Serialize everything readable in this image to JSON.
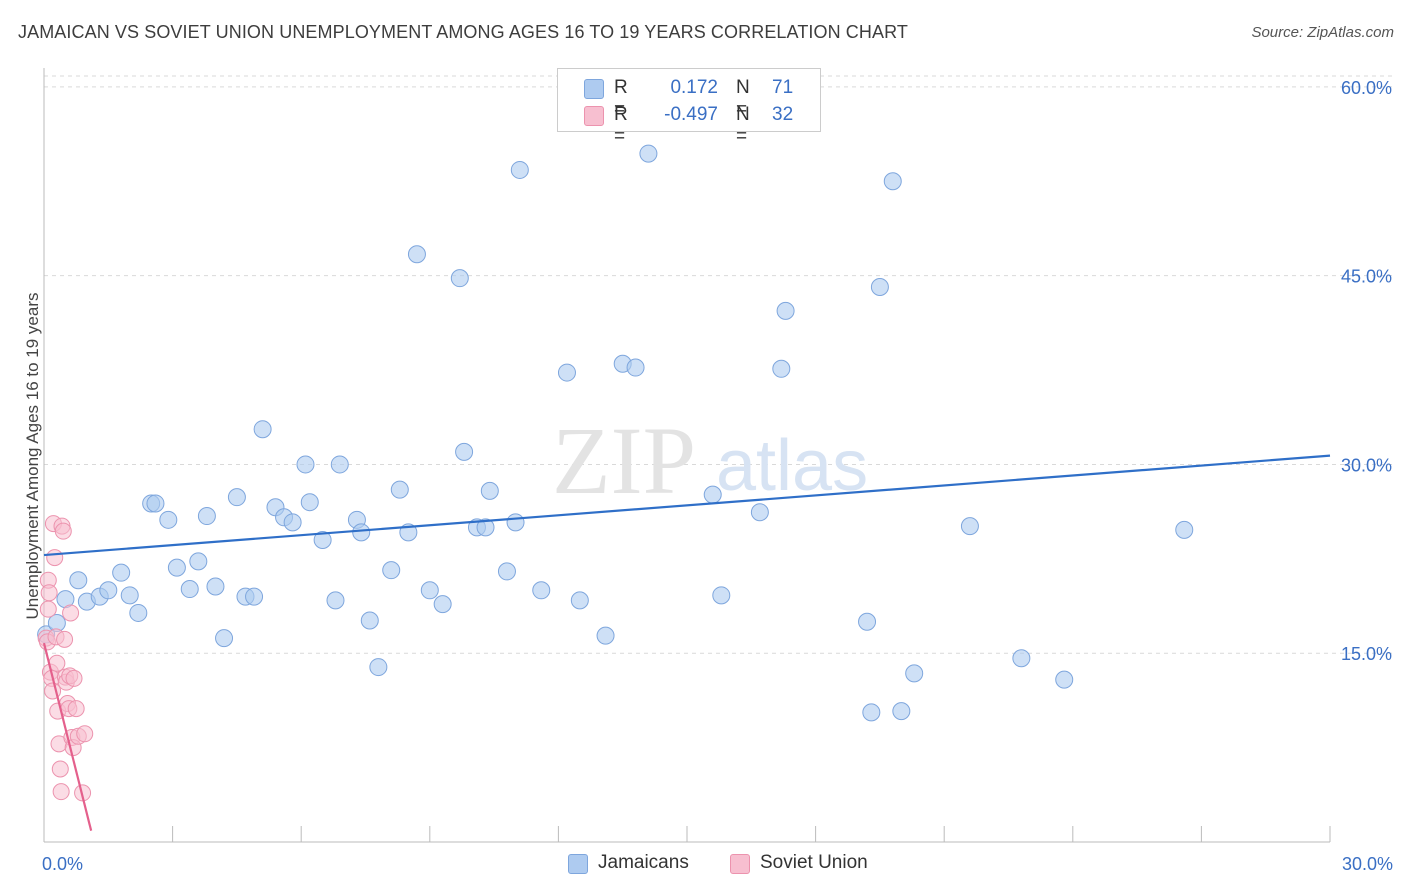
{
  "title": "JAMAICAN VS SOVIET UNION UNEMPLOYMENT AMONG AGES 16 TO 19 YEARS CORRELATION CHART",
  "source": "Source: ZipAtlas.com",
  "watermark": {
    "zip": "ZIP",
    "atlas": "atlas"
  },
  "legend": {
    "jamaicans": {
      "r_label": "R =",
      "r_value": "0.172",
      "n_label": "N =",
      "n_value": "71"
    },
    "soviet": {
      "r_label": "R =",
      "r_value": "-0.497",
      "n_label": "N =",
      "n_value": "32"
    }
  },
  "colors": {
    "jamaicans_fill": "#aecbf0",
    "jamaicans_stroke": "#7ea6dd",
    "jamaicans_line": "#2f6fc8",
    "soviet_fill": "#f7bfd0",
    "soviet_stroke": "#ec93ae",
    "soviet_line": "#e4608c",
    "tick_label": "#3a6fc4",
    "grid": "#d9d9d9"
  },
  "chart_data": {
    "type": "scatter",
    "title": "JAMAICAN VS SOVIET UNION UNEMPLOYMENT AMONG AGES 16 TO 19 YEARS CORRELATION CHART",
    "xlabel": "",
    "ylabel": "Unemployment Among Ages 16 to 19 years",
    "xlim": [
      0,
      30
    ],
    "ylim": [
      0,
      61.5
    ],
    "x_tick_labels": [
      "0.0%",
      "30.0%"
    ],
    "x_tick_values": [
      0,
      30
    ],
    "y_tick_labels": [
      "15.0%",
      "30.0%",
      "45.0%",
      "60.0%"
    ],
    "y_tick_values": [
      15,
      30,
      45,
      60
    ],
    "grid": true,
    "legend_position": "top-center",
    "series": [
      {
        "name": "Jamaicans",
        "r": 0.172,
        "n": 71,
        "trend": [
          [
            0,
            22.8
          ],
          [
            30,
            30.7
          ]
        ],
        "points": [
          [
            0.05,
            16.5
          ],
          [
            0.3,
            17.4
          ],
          [
            0.5,
            19.3
          ],
          [
            0.8,
            20.8
          ],
          [
            1.0,
            19.1
          ],
          [
            1.3,
            19.5
          ],
          [
            1.5,
            20.0
          ],
          [
            1.8,
            21.4
          ],
          [
            2.0,
            19.6
          ],
          [
            2.2,
            18.2
          ],
          [
            2.5,
            26.9
          ],
          [
            2.6,
            26.9
          ],
          [
            2.9,
            25.6
          ],
          [
            3.1,
            21.8
          ],
          [
            3.4,
            20.1
          ],
          [
            3.6,
            22.3
          ],
          [
            3.8,
            25.9
          ],
          [
            4.0,
            20.3
          ],
          [
            4.2,
            16.2
          ],
          [
            4.5,
            27.4
          ],
          [
            4.7,
            19.5
          ],
          [
            4.9,
            19.5
          ],
          [
            5.1,
            32.8
          ],
          [
            5.4,
            26.6
          ],
          [
            5.6,
            25.8
          ],
          [
            5.8,
            25.4
          ],
          [
            6.1,
            30.0
          ],
          [
            6.2,
            27.0
          ],
          [
            6.5,
            24.0
          ],
          [
            6.8,
            19.2
          ],
          [
            6.9,
            30.0
          ],
          [
            7.3,
            25.6
          ],
          [
            7.4,
            24.6
          ],
          [
            7.6,
            17.6
          ],
          [
            7.8,
            13.9
          ],
          [
            8.1,
            21.6
          ],
          [
            8.3,
            28.0
          ],
          [
            8.5,
            24.6
          ],
          [
            8.7,
            46.7
          ],
          [
            9.0,
            20.0
          ],
          [
            9.3,
            18.9
          ],
          [
            9.7,
            44.8
          ],
          [
            9.8,
            31.0
          ],
          [
            10.1,
            25.0
          ],
          [
            10.3,
            25.0
          ],
          [
            10.4,
            27.9
          ],
          [
            10.8,
            21.5
          ],
          [
            11.0,
            25.4
          ],
          [
            11.1,
            53.4
          ],
          [
            11.6,
            20.0
          ],
          [
            12.2,
            37.3
          ],
          [
            12.5,
            19.2
          ],
          [
            13.1,
            16.4
          ],
          [
            13.5,
            38.0
          ],
          [
            13.8,
            37.7
          ],
          [
            14.1,
            54.7
          ],
          [
            15.6,
            27.6
          ],
          [
            15.8,
            19.6
          ],
          [
            16.7,
            26.2
          ],
          [
            17.2,
            37.6
          ],
          [
            17.3,
            42.2
          ],
          [
            19.2,
            17.5
          ],
          [
            19.3,
            10.3
          ],
          [
            19.5,
            44.1
          ],
          [
            19.8,
            52.5
          ],
          [
            20.0,
            10.4
          ],
          [
            20.3,
            13.4
          ],
          [
            21.6,
            25.1
          ],
          [
            22.8,
            14.6
          ],
          [
            23.8,
            12.9
          ],
          [
            26.6,
            24.8
          ]
        ]
      },
      {
        "name": "Soviet Union",
        "r": -0.497,
        "n": 32,
        "trend": [
          [
            0,
            15.8
          ],
          [
            1.1,
            0.9
          ]
        ],
        "points": [
          [
            0.05,
            16.2
          ],
          [
            0.08,
            15.9
          ],
          [
            0.1,
            20.8
          ],
          [
            0.12,
            19.8
          ],
          [
            0.15,
            13.5
          ],
          [
            0.18,
            13.0
          ],
          [
            0.2,
            12.0
          ],
          [
            0.22,
            25.3
          ],
          [
            0.25,
            22.6
          ],
          [
            0.28,
            16.3
          ],
          [
            0.3,
            14.2
          ],
          [
            0.32,
            10.4
          ],
          [
            0.35,
            7.8
          ],
          [
            0.38,
            5.8
          ],
          [
            0.4,
            4.0
          ],
          [
            0.42,
            25.1
          ],
          [
            0.45,
            24.7
          ],
          [
            0.48,
            16.1
          ],
          [
            0.5,
            13.1
          ],
          [
            0.52,
            12.7
          ],
          [
            0.55,
            11.0
          ],
          [
            0.58,
            10.6
          ],
          [
            0.6,
            13.2
          ],
          [
            0.62,
            18.2
          ],
          [
            0.65,
            8.3
          ],
          [
            0.68,
            7.5
          ],
          [
            0.7,
            13.0
          ],
          [
            0.75,
            10.6
          ],
          [
            0.8,
            8.4
          ],
          [
            0.9,
            3.9
          ],
          [
            0.95,
            8.6
          ],
          [
            0.1,
            18.5
          ]
        ]
      }
    ]
  }
}
